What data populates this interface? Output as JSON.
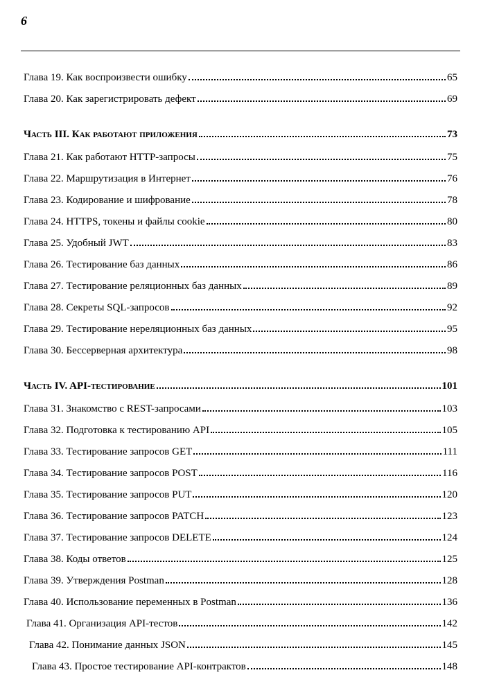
{
  "page_number": "6",
  "sections": [
    {
      "type": "chapter",
      "title": "Глава 19. Как воспроизвести ошибку",
      "page": "65",
      "indent": 0
    },
    {
      "type": "chapter",
      "title": "Глава 20. Как зарегистрировать дефект",
      "page": "69",
      "indent": 0
    },
    {
      "type": "part",
      "title": "Часть III. Как работают приложения",
      "page": "73",
      "indent": 0
    },
    {
      "type": "chapter",
      "title": "Глава 21. Как работают HTTP-запросы",
      "page": "75",
      "indent": 0
    },
    {
      "type": "chapter",
      "title": "Глава 22. Маршрутизация в Интернет",
      "page": "76",
      "indent": 0
    },
    {
      "type": "chapter",
      "title": "Глава 23. Кодирование и шифрование",
      "page": "78",
      "indent": 0
    },
    {
      "type": "chapter",
      "title": "Глава 24. HTTPS, токены и файлы cookie",
      "page": "80",
      "indent": 0
    },
    {
      "type": "chapter",
      "title": "Глава 25. Удобный JWT",
      "page": "83",
      "indent": 0
    },
    {
      "type": "chapter",
      "title": "Глава 26. Тестирование баз данных",
      "page": "86",
      "indent": 0
    },
    {
      "type": "chapter",
      "title": "Глава 27. Тестирование реляционных баз данных",
      "page": "89",
      "indent": 0
    },
    {
      "type": "chapter",
      "title": "Глава 28. Секреты SQL-запросов",
      "page": "92",
      "indent": 0
    },
    {
      "type": "chapter",
      "title": "Глава 29. Тестирование нереляционных баз данных",
      "page": "95",
      "indent": 0
    },
    {
      "type": "chapter",
      "title": "Глава 30. Бессерверная архитектура",
      "page": "98",
      "indent": 0
    },
    {
      "type": "part",
      "title": "Часть IV. API-тестирование",
      "page": "101",
      "indent": 0
    },
    {
      "type": "chapter",
      "title": "Глава 31. Знакомство с REST-запросами",
      "page": "103",
      "indent": 0
    },
    {
      "type": "chapter",
      "title": "Глава 32. Подготовка к тестированию API",
      "page": "105",
      "indent": 0
    },
    {
      "type": "chapter",
      "title": "Глава 33. Тестирование запросов GET",
      "page": "111",
      "indent": 0
    },
    {
      "type": "chapter",
      "title": "Глава 34. Тестирование запросов POST",
      "page": "116",
      "indent": 0
    },
    {
      "type": "chapter",
      "title": "Глава 35. Тестирование запросов PUT",
      "page": "120",
      "indent": 0
    },
    {
      "type": "chapter",
      "title": "Глава 36. Тестирование запросов PATCH",
      "page": "123",
      "indent": 0
    },
    {
      "type": "chapter",
      "title": "Глава 37. Тестирование запросов DELETE",
      "page": "124",
      "indent": 0
    },
    {
      "type": "chapter",
      "title": "Глава 38. Коды ответов",
      "page": "125",
      "indent": 0
    },
    {
      "type": "chapter",
      "title": "Глава 39. Утверждения Postman",
      "page": "128",
      "indent": 0
    },
    {
      "type": "chapter",
      "title": "Глава 40. Использование переменных в Postman",
      "page": "136",
      "indent": 0
    },
    {
      "type": "chapter",
      "title": "Глава 41. Организация API-тестов",
      "page": "142",
      "indent": 1
    },
    {
      "type": "chapter",
      "title": "Глава 42. Понимание данных JSON",
      "page": "145",
      "indent": 2
    },
    {
      "type": "chapter",
      "title": "Глава 43. Простое тестирование API-контрактов",
      "page": "148",
      "indent": 3
    }
  ]
}
